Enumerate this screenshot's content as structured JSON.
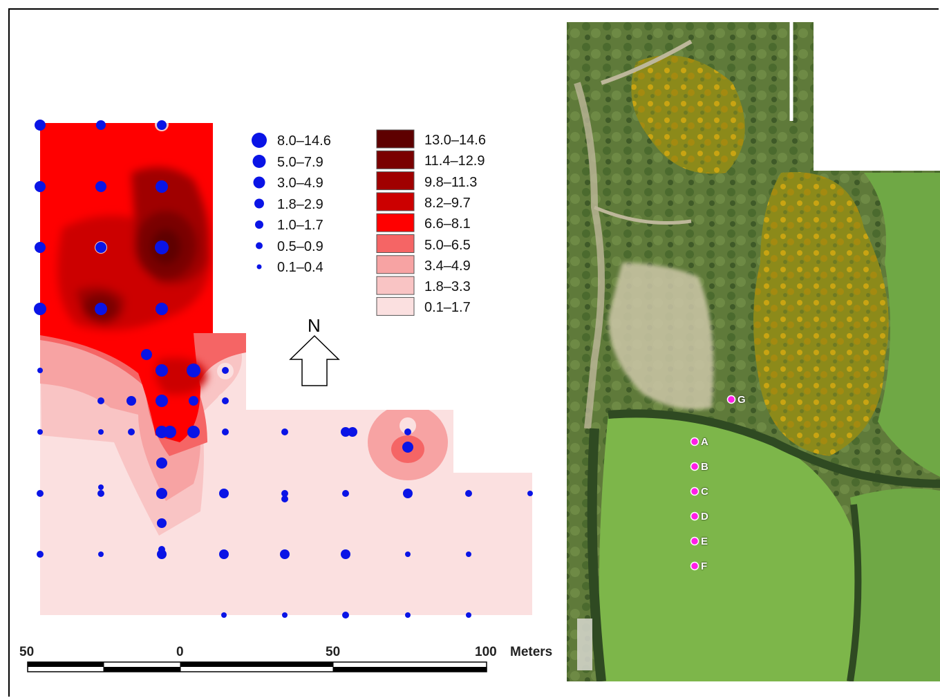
{
  "map": {
    "north_label": "N",
    "scale": {
      "ticks": [
        "50",
        "0",
        "50",
        "100"
      ],
      "unit": "Meters"
    },
    "point_legend": {
      "color": "#0a14e6",
      "classes": [
        "8.0–14.6",
        "5.0–7.9",
        "3.0–4.9",
        "1.8–2.9",
        "1.0–1.7",
        "0.5–0.9",
        "0.1–0.4"
      ]
    },
    "surface_legend": {
      "classes": [
        {
          "label": "13.0–14.6",
          "color": "#5e0000"
        },
        {
          "label": "11.4–12.9",
          "color": "#7a0000"
        },
        {
          "label": "9.8–11.3",
          "color": "#a00000"
        },
        {
          "label": "8.2–9.7",
          "color": "#cc0000"
        },
        {
          "label": "6.6–8.1",
          "color": "#ff0000"
        },
        {
          "label": "5.0–6.5",
          "color": "#f56565"
        },
        {
          "label": "3.4–4.9",
          "color": "#f7a3a3"
        },
        {
          "label": "1.8–3.3",
          "color": "#f9c4c4"
        },
        {
          "label": "0.1–1.7",
          "color": "#fbe0e0"
        }
      ]
    }
  },
  "aerial": {
    "site_color": "#ff1ee6",
    "sites": [
      "G",
      "A",
      "B",
      "C",
      "D",
      "E",
      "F"
    ]
  }
}
